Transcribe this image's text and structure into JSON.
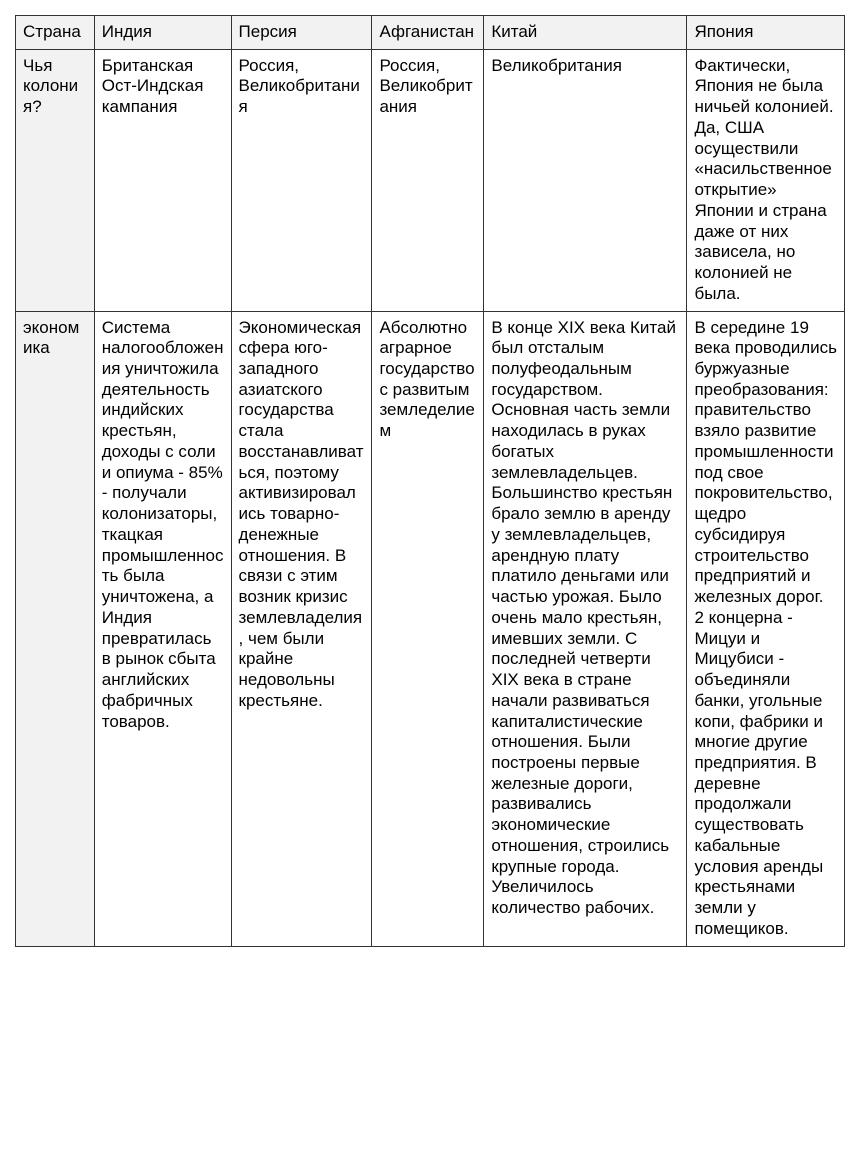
{
  "table": {
    "headers": {
      "col0": "Страна",
      "col1": "Индия",
      "col2": "Персия",
      "col3": "Афганистан",
      "col4": "Китай",
      "col5": "Япония"
    },
    "row_labels": {
      "r1": "Чья колония?",
      "r2": "экономика"
    },
    "rows": {
      "r1": {
        "c1": "Британская Ост-Индская кампания",
        "c2": "Россия, Великобритания",
        "c3": "Россия, Великобритания",
        "c4": "Великобритания",
        "c5": "Фактически, Япония не была ничьей колонией. Да, США осуществили «насильственное открытие» Японии и страна даже от них зависела, но колонией не была."
      },
      "r2": {
        "c1": "Система налогообложения уничтожила деятельность индийских крестьян, доходы с соли и опиума - 85% - получали колонизаторы, ткацкая промышленность была уничтожена, а Индия превратилась в рынок сбыта английских фабричных товаров.",
        "c2": "Экономическая сфера юго-западного азиатского государства стала восстанавливаться, поэтому активизировались товарно-денежные отношения. В связи с этим возник кризис землевладелия, чем были крайне недовольны крестьяне.",
        "c3": "Абсолютно аграрное государство с развитым земледелием",
        "c4": "В конце XIX века Китай был отсталым полуфеодальным государством. Основная часть земли находилась в руках богатых землевладельцев. Большинство крестьян брало землю в аренду у землевладельцев, арендную плату платило деньгами или частью урожая. Было очень мало крестьян, имевших земли. С последней четверти XIX века в стране начали развиваться капиталистические отношения. Были построены первые железные дороги, развивались экономические отношения, строились крупные города. Увеличилось количество рабочих.",
        "c5": "В середине 19 века проводились буржуазные преобразования: правительство взяло развитие промышленности под свое покровительство, щедро субсидируя строительство предприятий и железных дорог. 2 концерна - Мицуи и Мицубиси - объединяли банки, угольные копи, фабрики и многие другие предприятия. В деревне продолжали существовать кабальные условия аренды крестьянами земли у помещиков."
      }
    }
  },
  "styles": {
    "background_color": "#ffffff",
    "header_bg": "#f2f2f2",
    "border_color": "#333333",
    "text_color": "#000000",
    "font_size": 17
  }
}
